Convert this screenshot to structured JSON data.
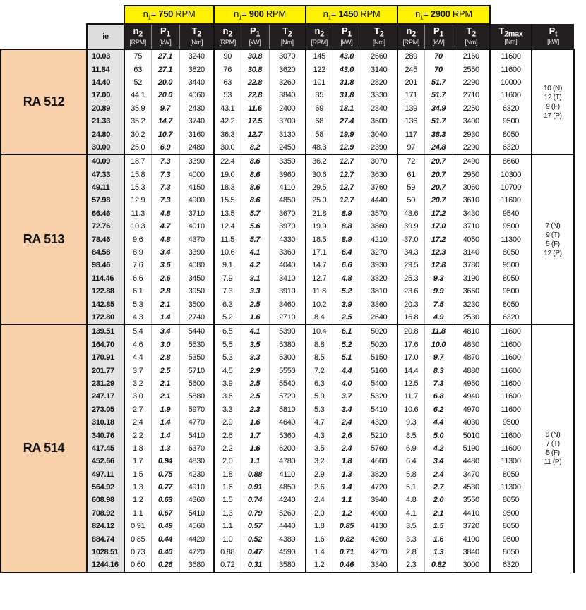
{
  "header": {
    "speed_prefix": "n",
    "speed_sub": "1",
    "speed_eq": "= ",
    "speed_unit": " RPM",
    "speeds": [
      "750",
      "900",
      "1450",
      "2900"
    ],
    "ie": "ie",
    "n2": {
      "main": "n",
      "sub": "2",
      "unit": "[RPM]"
    },
    "p1": {
      "main": "P",
      "sub": "1",
      "unit": "[kW]"
    },
    "t2": {
      "main": "T",
      "sub": "2",
      "unit": "[Nm]"
    },
    "t2max": {
      "main": "T",
      "sub": "2max",
      "unit": "[Nm]"
    },
    "pt": {
      "main": "P",
      "sub": "t",
      "unit": "[kW]"
    }
  },
  "groups": [
    {
      "name": "RA 512",
      "pt": [
        "10 (N)",
        "12 (T)",
        "9 (F)",
        "17 (P)"
      ],
      "rows": [
        [
          "10.03",
          "75",
          "27.1",
          "3240",
          "90",
          "30.8",
          "3070",
          "145",
          "43.0",
          "2660",
          "289",
          "70",
          "2160",
          "11600"
        ],
        [
          "11.84",
          "63",
          "27.1",
          "3820",
          "76",
          "30.8",
          "3620",
          "122",
          "43.0",
          "3140",
          "245",
          "70",
          "2550",
          "11600"
        ],
        [
          "14.40",
          "52",
          "20.0",
          "3440",
          "63",
          "22.8",
          "3260",
          "101",
          "31.8",
          "2820",
          "201",
          "51.7",
          "2290",
          "10000"
        ],
        [
          "17.00",
          "44.1",
          "20.0",
          "4060",
          "53",
          "22.8",
          "3840",
          "85",
          "31.8",
          "3330",
          "171",
          "51.7",
          "2710",
          "11600"
        ],
        [
          "20.89",
          "35.9",
          "9.7",
          "2430",
          "43.1",
          "11.6",
          "2400",
          "69",
          "18.1",
          "2340",
          "139",
          "34.9",
          "2250",
          "6320"
        ],
        [
          "21.33",
          "35.2",
          "14.7",
          "3740",
          "42.2",
          "17.5",
          "3700",
          "68",
          "27.4",
          "3600",
          "136",
          "51.7",
          "3400",
          "9500"
        ],
        [
          "24.80",
          "30.2",
          "10.7",
          "3160",
          "36.3",
          "12.7",
          "3130",
          "58",
          "19.9",
          "3040",
          "117",
          "38.3",
          "2930",
          "8050"
        ],
        [
          "30.00",
          "25.0",
          "6.9",
          "2480",
          "30.0",
          "8.2",
          "2450",
          "48.3",
          "12.9",
          "2390",
          "97",
          "24.8",
          "2290",
          "6320"
        ]
      ]
    },
    {
      "name": "RA 513",
      "pt": [
        "7 (N)",
        "9 (T)",
        "5 (F)",
        "12 (P)"
      ],
      "rows": [
        [
          "40.09",
          "18.7",
          "7.3",
          "3390",
          "22.4",
          "8.6",
          "3350",
          "36.2",
          "12.7",
          "3070",
          "72",
          "20.7",
          "2490",
          "8660"
        ],
        [
          "47.33",
          "15.8",
          "7.3",
          "4000",
          "19.0",
          "8.6",
          "3960",
          "30.6",
          "12.7",
          "3630",
          "61",
          "20.7",
          "2950",
          "10300"
        ],
        [
          "49.11",
          "15.3",
          "7.3",
          "4150",
          "18.3",
          "8.6",
          "4110",
          "29.5",
          "12.7",
          "3760",
          "59",
          "20.7",
          "3060",
          "10700"
        ],
        [
          "57.98",
          "12.9",
          "7.3",
          "4900",
          "15.5",
          "8.6",
          "4850",
          "25.0",
          "12.7",
          "4440",
          "50",
          "20.7",
          "3610",
          "11600"
        ],
        [
          "66.46",
          "11.3",
          "4.8",
          "3710",
          "13.5",
          "5.7",
          "3670",
          "21.8",
          "8.9",
          "3570",
          "43.6",
          "17.2",
          "3430",
          "9540"
        ],
        [
          "72.76",
          "10.3",
          "4.7",
          "4010",
          "12.4",
          "5.6",
          "3970",
          "19.9",
          "8.8",
          "3860",
          "39.9",
          "17.0",
          "3710",
          "9500"
        ],
        [
          "78.46",
          "9.6",
          "4.8",
          "4370",
          "11.5",
          "5.7",
          "4330",
          "18.5",
          "8.9",
          "4210",
          "37.0",
          "17.2",
          "4050",
          "11300"
        ],
        [
          "84.58",
          "8.9",
          "3.4",
          "3390",
          "10.6",
          "4.1",
          "3360",
          "17.1",
          "6.4",
          "3270",
          "34.3",
          "12.3",
          "3140",
          "8050"
        ],
        [
          "98.46",
          "7.6",
          "3.6",
          "4080",
          "9.1",
          "4.2",
          "4040",
          "14.7",
          "6.6",
          "3930",
          "29.5",
          "12.8",
          "3780",
          "9500"
        ],
        [
          "114.46",
          "6.6",
          "2.6",
          "3450",
          "7.9",
          "3.1",
          "3410",
          "12.7",
          "4.8",
          "3320",
          "25.3",
          "9.3",
          "3190",
          "8050"
        ],
        [
          "122.88",
          "6.1",
          "2.8",
          "3950",
          "7.3",
          "3.3",
          "3910",
          "11.8",
          "5.2",
          "3810",
          "23.6",
          "9.9",
          "3660",
          "9500"
        ],
        [
          "142.85",
          "5.3",
          "2.1",
          "3500",
          "6.3",
          "2.5",
          "3460",
          "10.2",
          "3.9",
          "3360",
          "20.3",
          "7.5",
          "3230",
          "8050"
        ],
        [
          "172.80",
          "4.3",
          "1.4",
          "2740",
          "5.2",
          "1.6",
          "2710",
          "8.4",
          "2.5",
          "2640",
          "16.8",
          "4.9",
          "2530",
          "6320"
        ]
      ]
    },
    {
      "name": "RA 514",
      "pt": [
        "6 (N)",
        "7 (T)",
        "5 (F)",
        "11 (P)"
      ],
      "rows": [
        [
          "139.51",
          "5.4",
          "3.4",
          "5440",
          "6.5",
          "4.1",
          "5390",
          "10.4",
          "6.1",
          "5020",
          "20.8",
          "11.8",
          "4810",
          "11600"
        ],
        [
          "164.70",
          "4.6",
          "3.0",
          "5530",
          "5.5",
          "3.5",
          "5380",
          "8.8",
          "5.2",
          "5020",
          "17.6",
          "10.0",
          "4830",
          "11600"
        ],
        [
          "170.91",
          "4.4",
          "2.8",
          "5350",
          "5.3",
          "3.3",
          "5300",
          "8.5",
          "5.1",
          "5150",
          "17.0",
          "9.7",
          "4870",
          "11600"
        ],
        [
          "201.77",
          "3.7",
          "2.5",
          "5710",
          "4.5",
          "2.9",
          "5550",
          "7.2",
          "4.4",
          "5160",
          "14.4",
          "8.3",
          "4880",
          "11600"
        ],
        [
          "231.29",
          "3.2",
          "2.1",
          "5600",
          "3.9",
          "2.5",
          "5540",
          "6.3",
          "4.0",
          "5400",
          "12.5",
          "7.3",
          "4950",
          "11600"
        ],
        [
          "247.17",
          "3.0",
          "2.1",
          "5880",
          "3.6",
          "2.5",
          "5720",
          "5.9",
          "3.7",
          "5320",
          "11.7",
          "6.8",
          "4940",
          "11600"
        ],
        [
          "273.05",
          "2.7",
          "1.9",
          "5970",
          "3.3",
          "2.3",
          "5810",
          "5.3",
          "3.4",
          "5410",
          "10.6",
          "6.2",
          "4970",
          "11600"
        ],
        [
          "310.18",
          "2.4",
          "1.4",
          "4770",
          "2.9",
          "1.6",
          "4640",
          "4.7",
          "2.4",
          "4320",
          "9.3",
          "4.4",
          "4030",
          "9500"
        ],
        [
          "340.76",
          "2.2",
          "1.4",
          "5410",
          "2.6",
          "1.7",
          "5360",
          "4.3",
          "2.6",
          "5210",
          "8.5",
          "5.0",
          "5010",
          "11600"
        ],
        [
          "417.45",
          "1.8",
          "1.3",
          "6370",
          "2.2",
          "1.6",
          "6200",
          "3.5",
          "2.4",
          "5760",
          "6.9",
          "4.2",
          "5190",
          "11600"
        ],
        [
          "452.66",
          "1.7",
          "0.94",
          "4830",
          "2.0",
          "1.1",
          "4780",
          "3.2",
          "1.8",
          "4660",
          "6.4",
          "3.4",
          "4480",
          "11300"
        ],
        [
          "497.11",
          "1.5",
          "0.75",
          "4230",
          "1.8",
          "0.88",
          "4110",
          "2.9",
          "1.3",
          "3820",
          "5.8",
          "2.4",
          "3470",
          "8050"
        ],
        [
          "564.92",
          "1.3",
          "0.77",
          "4910",
          "1.6",
          "0.91",
          "4850",
          "2.6",
          "1.4",
          "4720",
          "5.1",
          "2.7",
          "4530",
          "11300"
        ],
        [
          "608.98",
          "1.2",
          "0.63",
          "4360",
          "1.5",
          "0.74",
          "4240",
          "2.4",
          "1.1",
          "3940",
          "4.8",
          "2.0",
          "3550",
          "8050"
        ],
        [
          "708.92",
          "1.1",
          "0.67",
          "5410",
          "1.3",
          "0.79",
          "5260",
          "2.0",
          "1.2",
          "4900",
          "4.1",
          "2.1",
          "4410",
          "9500"
        ],
        [
          "824.12",
          "0.91",
          "0.49",
          "4560",
          "1.1",
          "0.57",
          "4440",
          "1.8",
          "0.85",
          "4130",
          "3.5",
          "1.5",
          "3720",
          "8050"
        ],
        [
          "884.74",
          "0.85",
          "0.44",
          "4420",
          "1.0",
          "0.52",
          "4380",
          "1.6",
          "0.82",
          "4260",
          "3.3",
          "1.6",
          "4100",
          "9500"
        ],
        [
          "1028.51",
          "0.73",
          "0.40",
          "4720",
          "0.88",
          "0.47",
          "4590",
          "1.4",
          "0.71",
          "4270",
          "2.8",
          "1.3",
          "3840",
          "8050"
        ],
        [
          "1244.16",
          "0.60",
          "0.26",
          "3680",
          "0.72",
          "0.31",
          "3580",
          "1.2",
          "0.46",
          "3340",
          "2.3",
          "0.82",
          "3000",
          "6320"
        ]
      ]
    }
  ]
}
